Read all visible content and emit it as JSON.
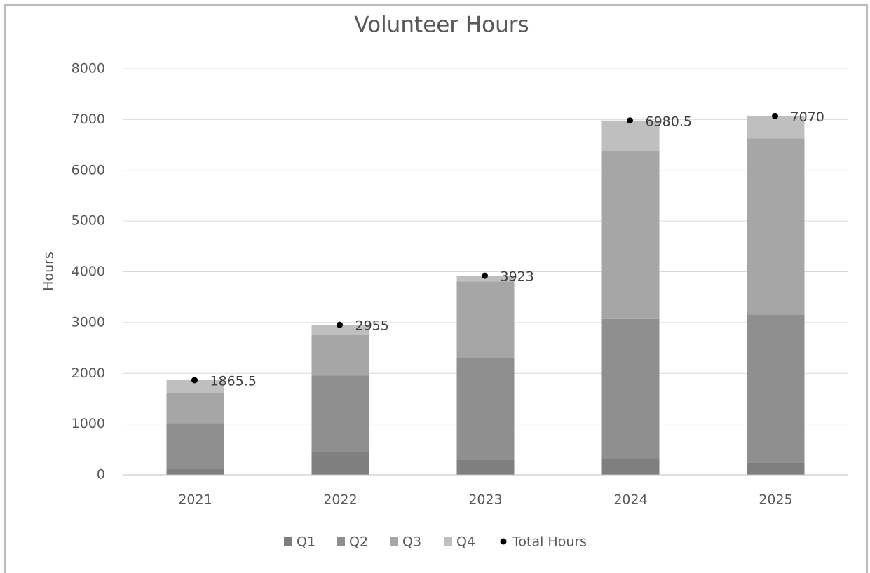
{
  "chart_data": {
    "type": "bar",
    "stacked": true,
    "title": "Volunteer Hours",
    "y_label": "Hours",
    "categories": [
      "2021",
      "2022",
      "2023",
      "2024",
      "2025"
    ],
    "series": [
      {
        "name": "Q1",
        "color": "#7f7f7f",
        "values": [
          110,
          450,
          300,
          330,
          240
        ]
      },
      {
        "name": "Q2",
        "color": "#8f8f8f",
        "values": [
          910,
          1510,
          2000,
          2740,
          2920
        ]
      },
      {
        "name": "Q3",
        "color": "#a6a6a6",
        "values": [
          595,
          790,
          1510,
          3310,
          3470
        ]
      },
      {
        "name": "Q4",
        "color": "#bfbfbf",
        "values": [
          250.5,
          205,
          113,
          600.5,
          440
        ]
      },
      {
        "name": "Total Hours",
        "type": "scatter",
        "color": "#000000",
        "values": [
          1865.5,
          2955,
          3923,
          6980.5,
          7070
        ],
        "data_labels": true
      }
    ],
    "ylim": [
      0,
      8000
    ],
    "yticks": [
      0,
      1000,
      2000,
      3000,
      4000,
      5000,
      6000,
      7000,
      8000
    ],
    "grid": true,
    "legend": "bottom"
  }
}
